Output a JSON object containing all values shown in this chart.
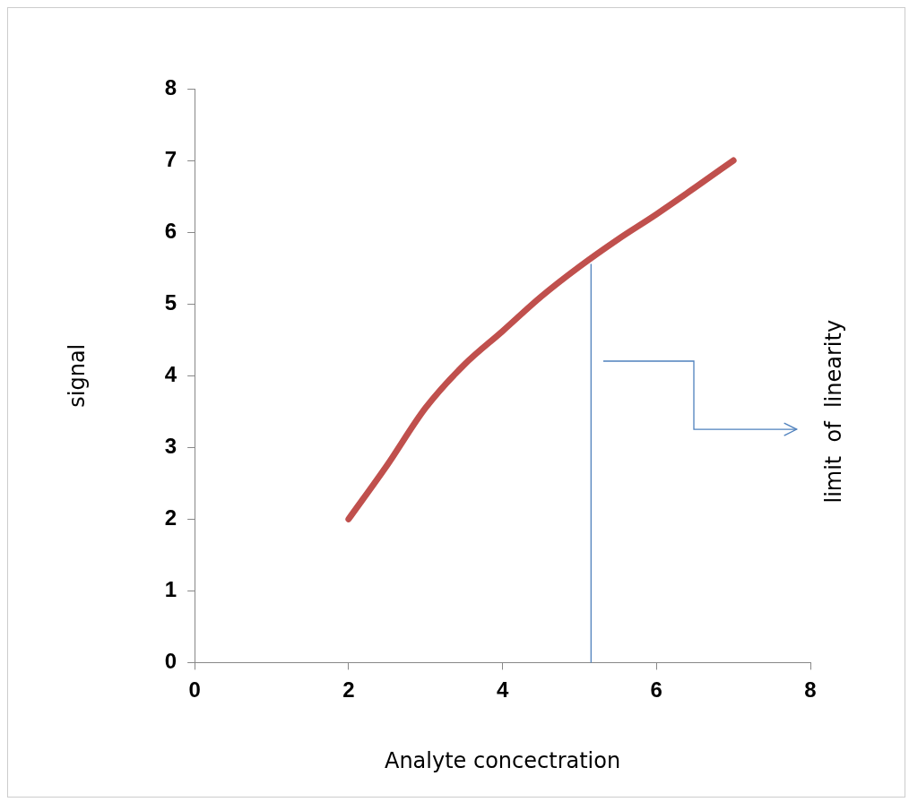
{
  "chart_data": {
    "type": "line",
    "xlabel": "Analyte concectration",
    "ylabel": "signal",
    "x": [
      2,
      2.5,
      3,
      3.5,
      4,
      4.5,
      5,
      5.5,
      6,
      6.5,
      7
    ],
    "series": [
      {
        "color": "#c0504d",
        "values": [
          2,
          2.75,
          3.55,
          4.15,
          4.62,
          5.1,
          5.52,
          5.9,
          6.25,
          6.62,
          7
        ]
      }
    ],
    "xlim": [
      0,
      8
    ],
    "xticks": [
      0,
      2,
      4,
      6,
      8
    ],
    "ylim": [
      0,
      8
    ],
    "yticks": [
      0,
      1,
      2,
      3,
      4,
      5,
      6,
      7,
      8
    ],
    "grid": false,
    "legend": false,
    "marker": "none",
    "line_style": "solid",
    "annotations": [
      "limit  of  linearity"
    ],
    "ref_lines": [
      {
        "axis": "x",
        "value": 5.15,
        "color": "#4f81bd"
      }
    ]
  }
}
